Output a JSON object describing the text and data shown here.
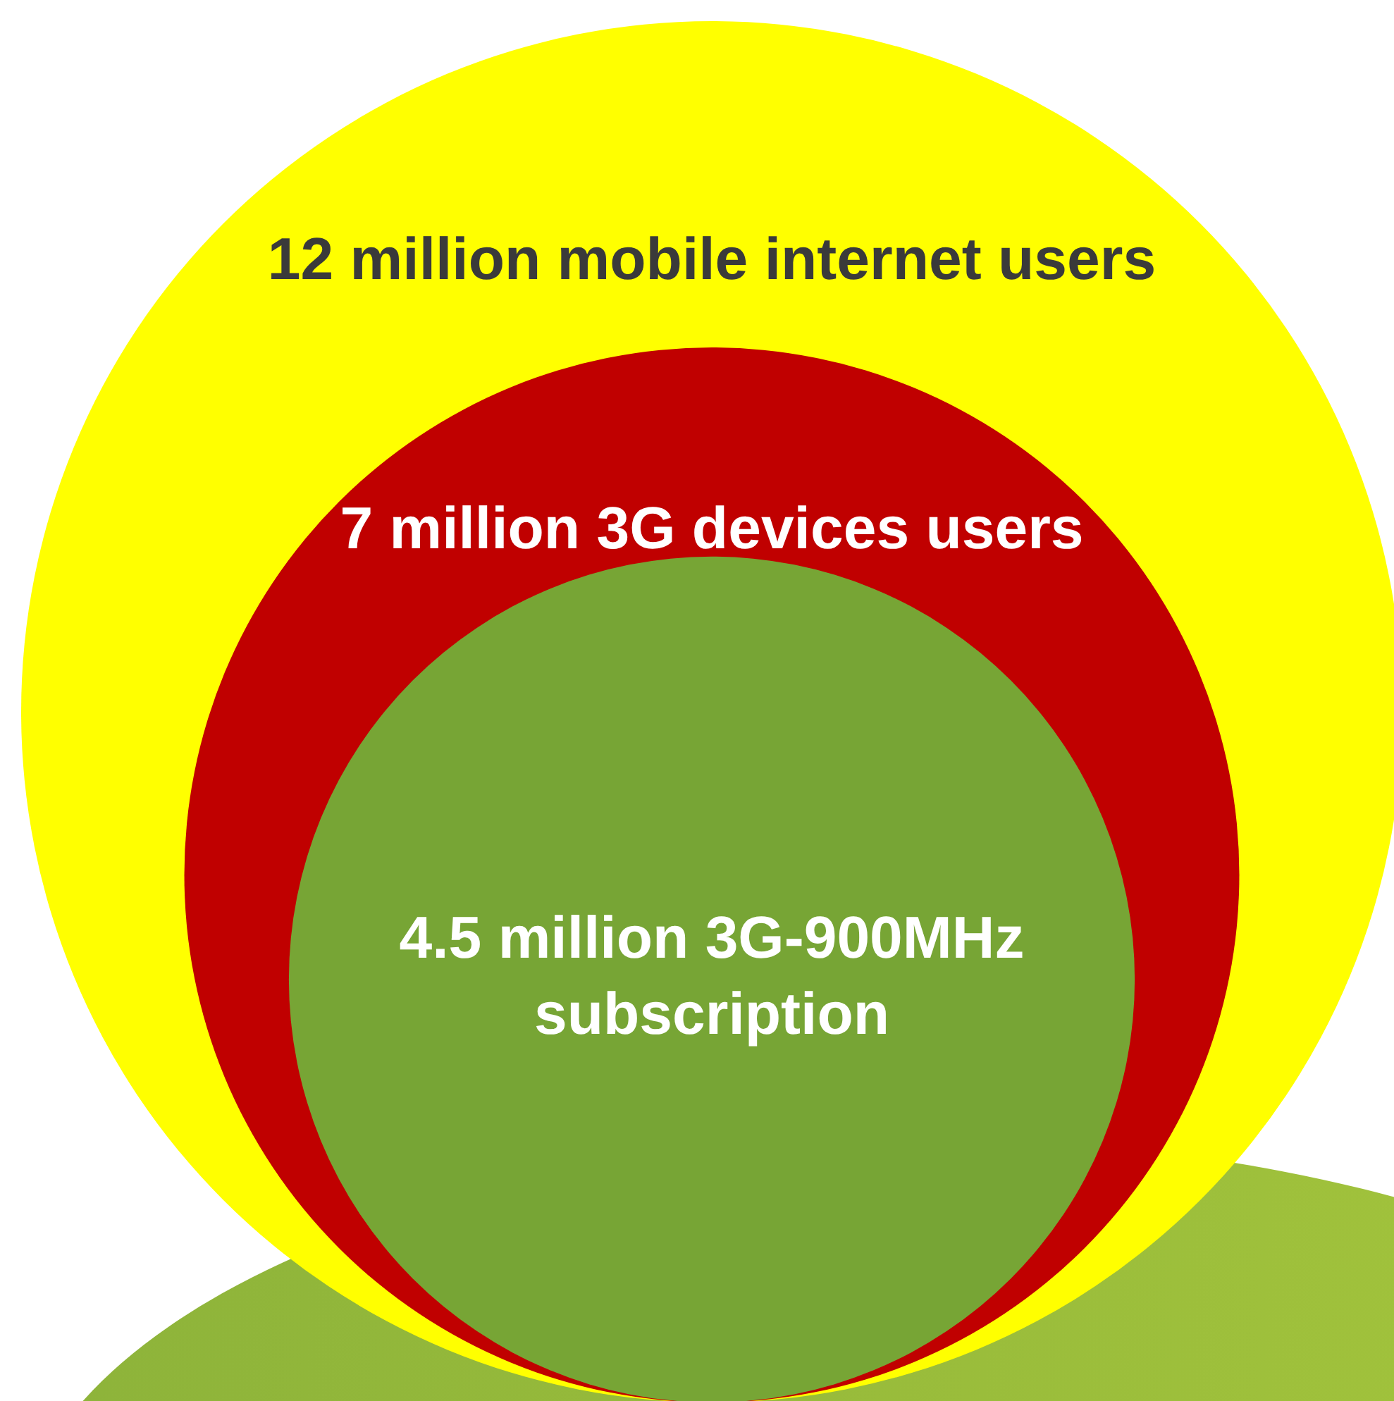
{
  "chart_data": {
    "type": "other",
    "categories": [
      "million mobile internet users",
      "million 3G devices users",
      "million 3G-900MHz subscription"
    ],
    "values": [
      12,
      7,
      4.5
    ],
    "data_labels": true,
    "colors": [
      "#ffff00",
      "#c00000",
      "#77a535"
    ]
  }
}
